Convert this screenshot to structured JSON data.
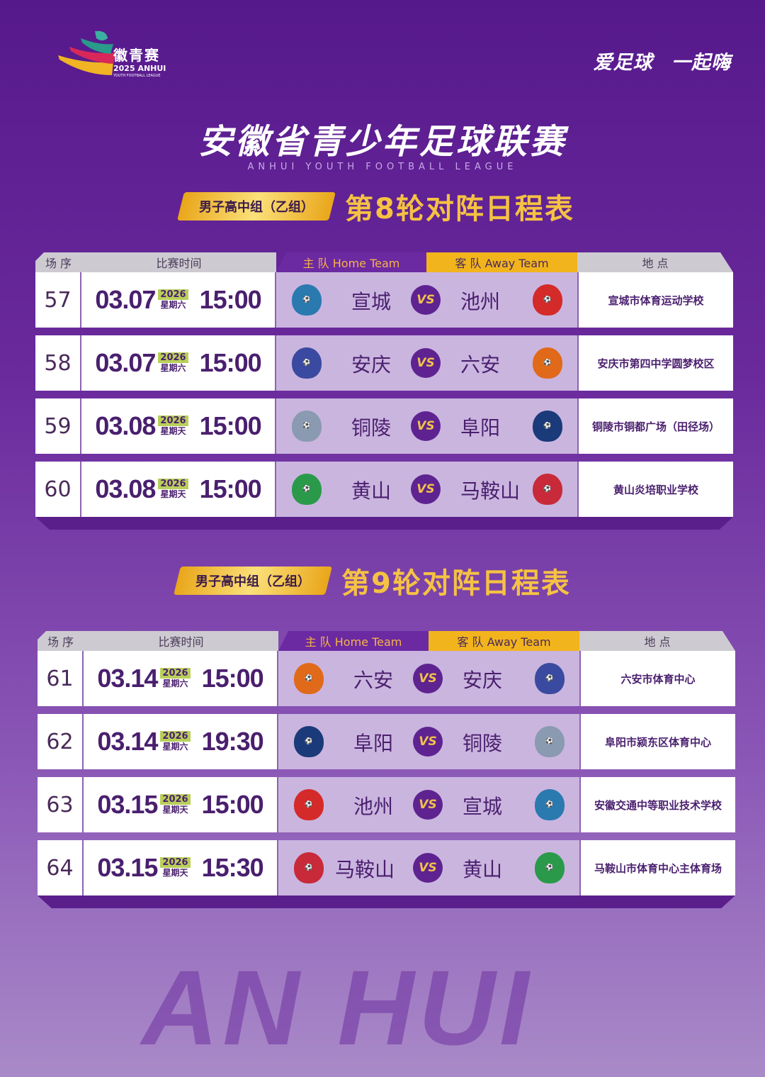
{
  "logo": {
    "cn": "徽青赛",
    "en": "2025 ANHUI",
    "sub": "YOUTH FOOTBALL LEAGUE"
  },
  "slogan": "爱足球 一起嗨",
  "title": "安徽省青少年足球联赛",
  "subtitle": "ANHUI YOUTH FOOTBALL LEAGUE",
  "headers": {
    "seq": "场 序",
    "time": "比赛时间",
    "home": "主 队 Home Team",
    "away": "客 队 Away Team",
    "venue": "地 点"
  },
  "vs": "VS",
  "watermark": "AN HUI",
  "colors": {
    "background": "#5a1e8e",
    "home_header": "#6b2aa2",
    "away_header": "#f2b41c",
    "match_cell": "#cab5df",
    "text": "#4a1f6e"
  },
  "rounds": [
    {
      "group": "男子高中组（乙组）",
      "title": "第8轮对阵日程表",
      "matches": [
        {
          "seq": "57",
          "date": "03.07",
          "year": "2026",
          "weekday": "星期六",
          "time": "15:00",
          "home": "宣城",
          "away": "池州",
          "venue": "宣城市体育运动学校"
        },
        {
          "seq": "58",
          "date": "03.07",
          "year": "2026",
          "weekday": "星期六",
          "time": "15:00",
          "home": "安庆",
          "away": "六安",
          "venue": "安庆市第四中学圆梦校区"
        },
        {
          "seq": "59",
          "date": "03.08",
          "year": "2026",
          "weekday": "星期天",
          "time": "15:00",
          "home": "铜陵",
          "away": "阜阳",
          "venue": "铜陵市铜都广场（田径场）"
        },
        {
          "seq": "60",
          "date": "03.08",
          "year": "2026",
          "weekday": "星期天",
          "time": "15:00",
          "home": "黄山",
          "away": "马鞍山",
          "venue": "黄山炎培职业学校"
        }
      ]
    },
    {
      "group": "男子高中组（乙组）",
      "title": "第9轮对阵日程表",
      "matches": [
        {
          "seq": "61",
          "date": "03.14",
          "year": "2026",
          "weekday": "星期六",
          "time": "15:00",
          "home": "六安",
          "away": "安庆",
          "venue": "六安市体育中心"
        },
        {
          "seq": "62",
          "date": "03.14",
          "year": "2026",
          "weekday": "星期六",
          "time": "19:30",
          "home": "阜阳",
          "away": "铜陵",
          "venue": "阜阳市颍东区体育中心"
        },
        {
          "seq": "63",
          "date": "03.15",
          "year": "2026",
          "weekday": "星期天",
          "time": "15:00",
          "home": "池州",
          "away": "宣城",
          "venue": "安徽交通中等职业技术学校"
        },
        {
          "seq": "64",
          "date": "03.15",
          "year": "2026",
          "weekday": "星期天",
          "time": "15:30",
          "home": "马鞍山",
          "away": "黄山",
          "venue": "马鞍山市体育中心主体育场"
        }
      ]
    }
  ]
}
